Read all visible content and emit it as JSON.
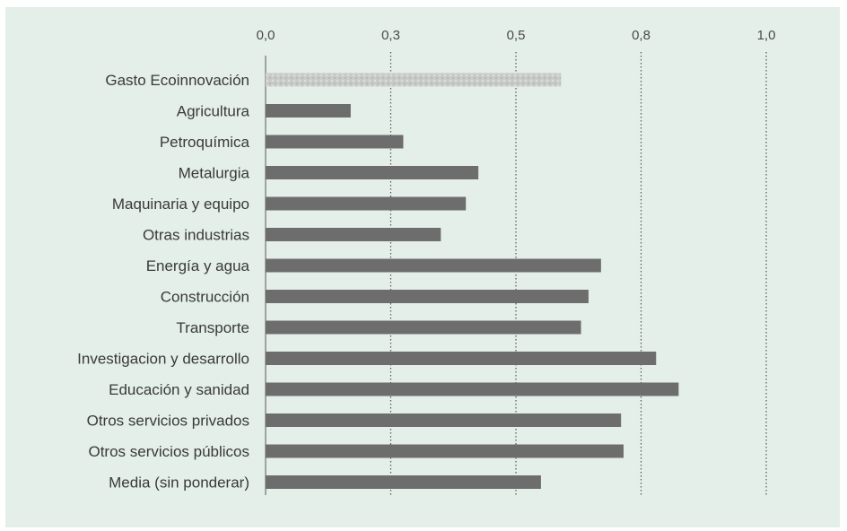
{
  "chart_data": {
    "type": "bar",
    "orientation": "horizontal",
    "title": "",
    "xlabel": "",
    "ylabel": "",
    "xlim": [
      0,
      1.0
    ],
    "ticks": [
      0,
      0.25,
      0.5,
      0.75,
      1.0
    ],
    "tick_labels": [
      "0,0",
      "0,3",
      "0,5",
      "0,8",
      "1,0"
    ],
    "grid": "vertical-dotted",
    "categories": [
      "Gasto Ecoinnovación",
      "Agricultura",
      "Petroquímica",
      "Metalurgia",
      "Maquinaria y equipo",
      "Otras industrias",
      "Energía y agua",
      "Construcción",
      "Transporte",
      "Investigacion y desarrollo",
      "Educación y sanidad",
      "Otros servicios privados",
      "Otros servicios públicos",
      "Media (sin ponderar)"
    ],
    "values": [
      0.59,
      0.17,
      0.275,
      0.425,
      0.4,
      0.35,
      0.67,
      0.645,
      0.63,
      0.78,
      0.825,
      0.71,
      0.715,
      0.55
    ],
    "highlighted_index": 0,
    "colors": {
      "bar": "#6d6d6d",
      "highlight": "#c9cbc9",
      "background": "#e3efe8",
      "grid": "#555555"
    }
  }
}
